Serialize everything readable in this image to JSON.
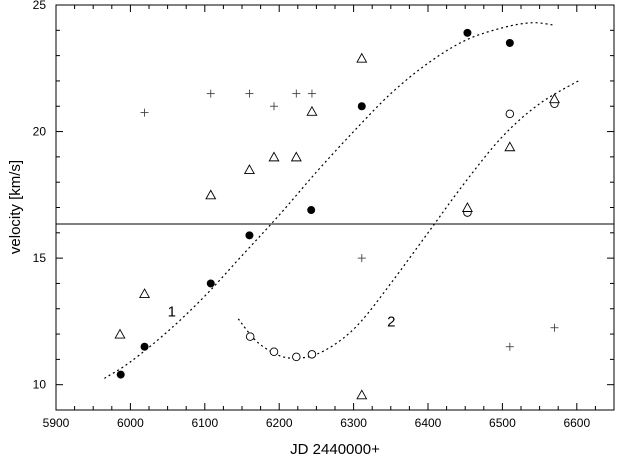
{
  "chart_data": {
    "type": "scatter",
    "xlabel": "JD 2440000+",
    "ylabel": "velocity [km/s]",
    "xlim": [
      5900,
      6650
    ],
    "ylim": [
      9,
      25
    ],
    "xticks": [
      5900,
      6000,
      6100,
      6200,
      6300,
      6400,
      6500,
      6600
    ],
    "yticks": [
      10,
      15,
      20,
      25
    ],
    "grid": false,
    "mean_line": {
      "y": 16.35
    },
    "series": [
      {
        "marker": "filled-circle",
        "x": [
          5987,
          6019,
          6108,
          6160,
          6243,
          6311,
          6453,
          6510
        ],
        "y": [
          10.4,
          11.5,
          14.0,
          15.9,
          16.9,
          21.0,
          23.9,
          23.5
        ]
      },
      {
        "marker": "open-circle",
        "x": [
          6161,
          6193,
          6223,
          6244,
          6453,
          6510,
          6570
        ],
        "y": [
          11.9,
          11.3,
          11.1,
          11.2,
          16.8,
          20.7,
          21.1
        ]
      },
      {
        "marker": "open-triangle",
        "x": [
          5986,
          6019,
          6108,
          6160,
          6193,
          6223,
          6244,
          6311,
          6311,
          6453,
          6510,
          6570
        ],
        "y": [
          12.0,
          13.6,
          17.5,
          18.5,
          19.0,
          19.0,
          20.8,
          22.9,
          9.6,
          17.0,
          19.4,
          21.3
        ]
      },
      {
        "marker": "plus",
        "x": [
          6019,
          6108,
          6160,
          6193,
          6223,
          6244,
          6311,
          6510,
          6570
        ],
        "y": [
          20.75,
          21.5,
          21.5,
          21.0,
          21.5,
          21.5,
          15.0,
          11.5,
          12.25
        ]
      }
    ],
    "curves": [
      {
        "label": "1",
        "label_at": [
          6050,
          12.7
        ],
        "x": [
          5965,
          6000,
          6050,
          6100,
          6150,
          6200,
          6250,
          6300,
          6350,
          6400,
          6450,
          6500,
          6540,
          6570
        ],
        "y": [
          10.25,
          10.9,
          12.1,
          13.5,
          15.1,
          16.7,
          18.4,
          20.0,
          21.5,
          22.7,
          23.6,
          24.1,
          24.3,
          24.2
        ]
      },
      {
        "label": "2",
        "label_at": [
          6345,
          12.3
        ],
        "x": [
          6145,
          6170,
          6200,
          6225,
          6250,
          6280,
          6310,
          6350,
          6400,
          6450,
          6500,
          6550,
          6605
        ],
        "y": [
          12.6,
          11.7,
          11.15,
          11.05,
          11.2,
          11.7,
          12.5,
          14.0,
          16.0,
          18.0,
          19.8,
          21.1,
          22.05
        ]
      }
    ]
  }
}
